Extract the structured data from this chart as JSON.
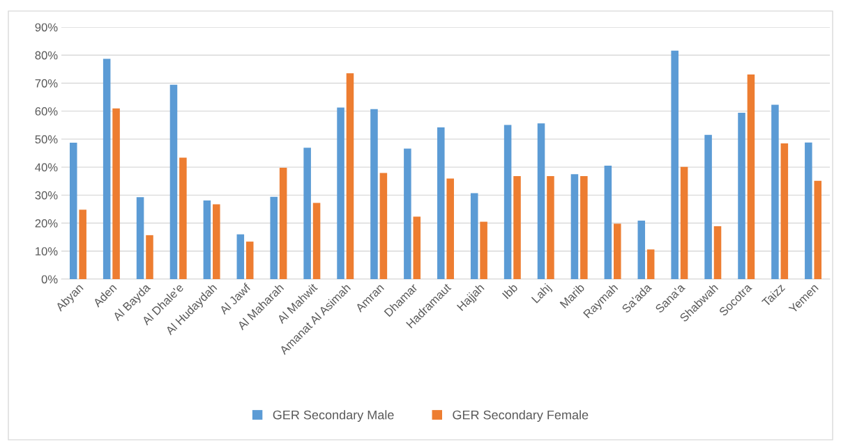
{
  "chart_data": {
    "type": "bar",
    "categories": [
      "Abyan",
      "Aden",
      "Al Bayda",
      "Al Dhale'e",
      "Al Hudaydah",
      "Al Jawf",
      "Al Maharah",
      "Al Mahwit",
      "Amanat Al Asimah",
      "Amran",
      "Dhamar",
      "Hadramaut",
      "Hajjah",
      "Ibb",
      "Lahj",
      "Marib",
      "Raymah",
      "Sa'ada",
      "Sana'a",
      "Shabwah",
      "Socotra",
      "Taizz",
      "Yemen"
    ],
    "series": [
      {
        "name": "GER Secondary Male",
        "color": "#5b9bd5",
        "values": [
          48.7,
          78.7,
          29.3,
          69.4,
          28.1,
          16.0,
          29.4,
          46.9,
          61.3,
          60.7,
          46.6,
          54.2,
          30.7,
          55.1,
          55.6,
          37.5,
          40.5,
          20.9,
          81.6,
          51.5,
          59.4,
          62.3,
          48.8
        ]
      },
      {
        "name": "GER Secondary Female",
        "color": "#ed7d31",
        "values": [
          24.8,
          61.0,
          15.7,
          43.4,
          26.7,
          13.4,
          39.8,
          27.2,
          73.5,
          37.9,
          22.3,
          35.9,
          20.5,
          36.8,
          36.8,
          36.8,
          19.8,
          10.6,
          40.1,
          18.9,
          73.1,
          48.5,
          35.1
        ]
      }
    ],
    "ylim": [
      0,
      90
    ],
    "yticks": [
      {
        "value": 0,
        "label": "0%"
      },
      {
        "value": 10,
        "label": "10%"
      },
      {
        "value": 20,
        "label": "20%"
      },
      {
        "value": 30,
        "label": "30%"
      },
      {
        "value": 40,
        "label": "40%"
      },
      {
        "value": 50,
        "label": "50%"
      },
      {
        "value": 60,
        "label": "60%"
      },
      {
        "value": 70,
        "label": "70%"
      },
      {
        "value": 80,
        "label": "80%"
      },
      {
        "value": 90,
        "label": "90%"
      }
    ],
    "grid": "y",
    "legend": "bottom"
  }
}
